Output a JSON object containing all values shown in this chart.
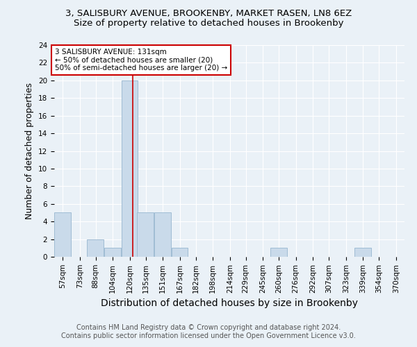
{
  "title1": "3, SALISBURY AVENUE, BROOKENBY, MARKET RASEN, LN8 6EZ",
  "title2": "Size of property relative to detached houses in Brookenby",
  "xlabel": "Distribution of detached houses by size in Brookenby",
  "ylabel": "Number of detached properties",
  "bins": [
    57,
    73,
    88,
    104,
    120,
    135,
    151,
    167,
    182,
    198,
    214,
    229,
    245,
    260,
    276,
    292,
    307,
    323,
    339,
    354,
    370
  ],
  "values": [
    5,
    0,
    2,
    1,
    20,
    5,
    5,
    1,
    0,
    0,
    0,
    0,
    0,
    1,
    0,
    0,
    0,
    0,
    1,
    0,
    0
  ],
  "bar_color": "#c9daea",
  "bar_edge_color": "#a0bcd4",
  "marker_value": 131,
  "marker_color": "#cc0000",
  "ylim": [
    0,
    24
  ],
  "yticks": [
    0,
    2,
    4,
    6,
    8,
    10,
    12,
    14,
    16,
    18,
    20,
    22,
    24
  ],
  "annotation_line1": "3 SALISBURY AVENUE: 131sqm",
  "annotation_line2": "← 50% of detached houses are smaller (20)",
  "annotation_line3": "50% of semi-detached houses are larger (20) →",
  "annotation_box_color": "#ffffff",
  "annotation_box_edge": "#cc0000",
  "footer1": "Contains HM Land Registry data © Crown copyright and database right 2024.",
  "footer2": "Contains public sector information licensed under the Open Government Licence v3.0.",
  "background_color": "#eaf1f7",
  "grid_color": "#ffffff",
  "title1_fontsize": 9.5,
  "title2_fontsize": 9.5,
  "xlabel_fontsize": 10,
  "ylabel_fontsize": 9,
  "tick_fontsize": 7.5,
  "footer_fontsize": 7,
  "annotation_fontsize": 7.5
}
